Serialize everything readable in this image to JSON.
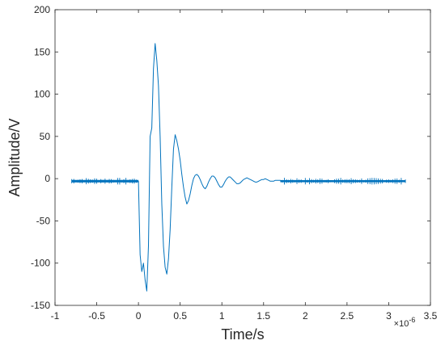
{
  "chart_data": {
    "type": "line",
    "title": "",
    "xlabel": "Time/s",
    "ylabel": "Amplitude/V",
    "x_exponent_label": "×10",
    "x_exponent": "-6",
    "x_scale": 1e-06,
    "xlim": [
      -1,
      3.5
    ],
    "ylim": [
      -150,
      200
    ],
    "xticks": [
      -1,
      -0.5,
      0,
      0.5,
      1,
      1.5,
      2,
      2.5,
      3,
      3.5
    ],
    "xtick_labels": [
      "-1",
      "-0.5",
      "0",
      "0.5",
      "1",
      "1.5",
      "2",
      "2.5",
      "3",
      "3.5"
    ],
    "yticks": [
      -150,
      -100,
      -50,
      0,
      50,
      100,
      150,
      200
    ],
    "ytick_labels": [
      "-150",
      "-100",
      "-50",
      "0",
      "50",
      "100",
      "150",
      "200"
    ],
    "grid": false,
    "box": true,
    "line_color": "#0072BD",
    "series": [
      {
        "x": [
          -0.8,
          0.0,
          0.02,
          0.04,
          0.06,
          0.08,
          0.1,
          0.12,
          0.14,
          0.16,
          0.18,
          0.2,
          0.22,
          0.24,
          0.26,
          0.28,
          0.3,
          0.32,
          0.34,
          0.36,
          0.38,
          0.4,
          0.42,
          0.44,
          0.46,
          0.48,
          0.5,
          0.52,
          0.54,
          0.56,
          0.58,
          0.6,
          0.62,
          0.64,
          0.66,
          0.68,
          0.7,
          0.72,
          0.74,
          0.76,
          0.78,
          0.8,
          0.82,
          0.84,
          0.86,
          0.88,
          0.9,
          0.92,
          0.94,
          0.96,
          0.98,
          1.0,
          1.02,
          1.04,
          1.06,
          1.08,
          1.1,
          1.12,
          1.14,
          1.16,
          1.18,
          1.2,
          1.22,
          1.24,
          1.26,
          1.28,
          1.3,
          1.32,
          1.34,
          1.36,
          1.38,
          1.4,
          1.42,
          1.44,
          1.46,
          1.48,
          1.5,
          1.52,
          1.54,
          1.56,
          1.58,
          1.6,
          1.62,
          1.64,
          1.66,
          1.68,
          1.7,
          1.75,
          1.8,
          1.9,
          2.0,
          2.2,
          2.5,
          3.0,
          3.2
        ],
        "y": [
          -3,
          -3,
          -90,
          -110,
          -100,
          -120,
          -133,
          -80,
          50,
          60,
          130,
          160,
          140,
          110,
          50,
          -30,
          -80,
          -105,
          -113,
          -95,
          -60,
          -10,
          35,
          52,
          45,
          35,
          22,
          5,
          -10,
          -22,
          -30,
          -26,
          -18,
          -8,
          0,
          4,
          5,
          3,
          -1,
          -6,
          -10,
          -12,
          -9,
          -4,
          0,
          3,
          3,
          1,
          -3,
          -7,
          -10,
          -10,
          -7,
          -3,
          0,
          2,
          2,
          0,
          -2,
          -4,
          -6,
          -6,
          -5,
          -3,
          -1,
          0,
          1,
          0,
          -1,
          -2,
          -3,
          -4,
          -4,
          -3,
          -2,
          -1,
          -1,
          0,
          -1,
          -2,
          -3,
          -3,
          -3,
          -2,
          -2,
          -2,
          -2,
          -3,
          -3,
          -3,
          -3,
          -3,
          -3,
          -3,
          -3
        ]
      }
    ]
  }
}
